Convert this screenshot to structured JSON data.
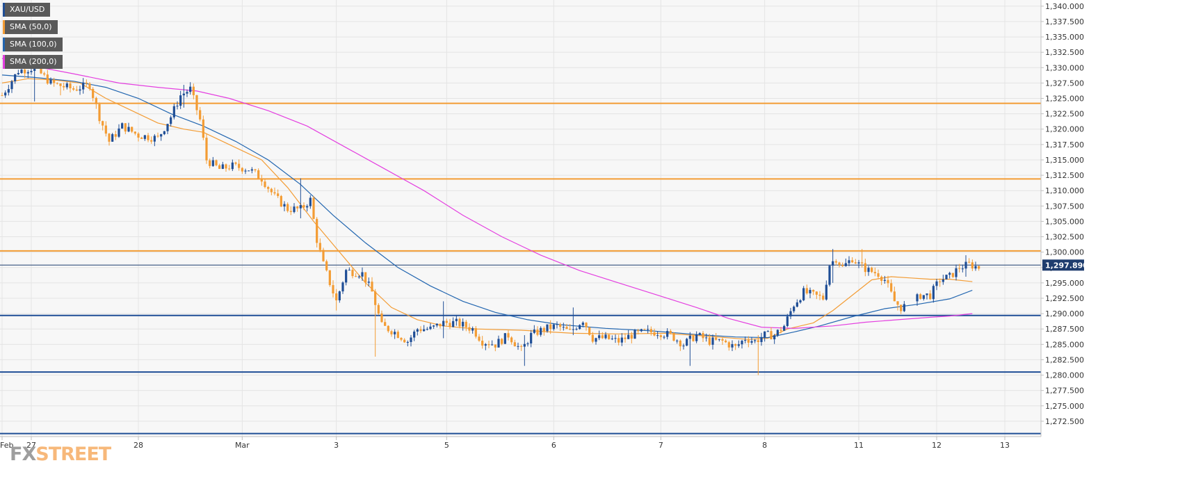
{
  "legend": [
    {
      "label": "XAU/USD",
      "color": "#1f4e96"
    },
    {
      "label": "SMA (50,0)",
      "color": "#f39c34"
    },
    {
      "label": "SMA (100,0)",
      "color": "#2266b0"
    },
    {
      "label": "SMA (200,0)",
      "color": "#e43fe0"
    }
  ],
  "watermark": {
    "part1": "FX",
    "part2": "STREET"
  },
  "current_price_label": "1,297.890",
  "colors": {
    "up": "#1f4e96",
    "down": "#f39c34",
    "sma50": "#f39c34",
    "sma100": "#2266b0",
    "sma200": "#e43fe0",
    "resistance": "#f39c34",
    "support": "#1f4e96",
    "current": "#1f3d6e",
    "grid": "#e4e4e4",
    "background": "#f7f7f7"
  },
  "chart_data": {
    "type": "candlestick",
    "title": "XAU/USD",
    "ylim": [
      1270,
      1341
    ],
    "xlim": [
      0,
      330
    ],
    "y_ticks": [
      1272.5,
      1275,
      1277.5,
      1280,
      1282.5,
      1285,
      1287.5,
      1290,
      1292.5,
      1295,
      1297.5,
      1300,
      1302.5,
      1305,
      1307.5,
      1310,
      1312.5,
      1315,
      1317.5,
      1320,
      1322.5,
      1325,
      1327.5,
      1330,
      1332.5,
      1335,
      1337.5,
      1340
    ],
    "y_tick_labels": [
      "1,272.500",
      "1,275.000",
      "1,277.500",
      "1,280.000",
      "1,282.500",
      "1,285.000",
      "1,287.500",
      "1,290.000",
      "1,292.500",
      "1,295.000",
      "1,297.500",
      "1,300.000",
      "1,302.500",
      "1,305.000",
      "1,307.500",
      "1,310.000",
      "1,312.500",
      "1,315.000",
      "1,317.500",
      "1,320.000",
      "1,322.500",
      "1,325.000",
      "1,327.500",
      "1,330.000",
      "1,332.500",
      "1,335.000",
      "1,337.500",
      "1,340.000"
    ],
    "x_ticks": [
      {
        "label": "Feb",
        "x": 0
      },
      {
        "label": "27",
        "x": 9
      },
      {
        "label": "28",
        "x": 42
      },
      {
        "label": "Mar",
        "x": 74
      },
      {
        "label": "3",
        "x": 103
      },
      {
        "label": "5",
        "x": 137
      },
      {
        "label": "6",
        "x": 170
      },
      {
        "label": "7",
        "x": 203
      },
      {
        "label": "8",
        "x": 235
      },
      {
        "label": "11",
        "x": 264
      },
      {
        "label": "12",
        "x": 288
      },
      {
        "label": "13",
        "x": 309
      }
    ],
    "horizontal_levels": [
      {
        "kind": "resistance",
        "value": 1324.2
      },
      {
        "kind": "resistance",
        "value": 1311.9
      },
      {
        "kind": "resistance",
        "value": 1300.2
      },
      {
        "kind": "support",
        "value": 1289.7
      },
      {
        "kind": "support",
        "value": 1280.5
      },
      {
        "kind": "support",
        "value": 1270.5
      },
      {
        "kind": "current",
        "value": 1297.89
      }
    ],
    "price_anchors": [
      [
        0,
        1325.5
      ],
      [
        5,
        1329.5
      ],
      [
        10,
        1330.0
      ],
      [
        15,
        1327.5
      ],
      [
        22,
        1326.5
      ],
      [
        27,
        1327.2
      ],
      [
        30,
        1322.0
      ],
      [
        33,
        1318.0
      ],
      [
        37,
        1320.5
      ],
      [
        42,
        1319.0
      ],
      [
        48,
        1318.5
      ],
      [
        52,
        1322.0
      ],
      [
        55,
        1325.5
      ],
      [
        58,
        1326.5
      ],
      [
        61,
        1321.5
      ],
      [
        63,
        1315.0
      ],
      [
        67,
        1313.5
      ],
      [
        71,
        1314.0
      ],
      [
        76,
        1313.5
      ],
      [
        80,
        1312.0
      ],
      [
        84,
        1309.0
      ],
      [
        88,
        1307.0
      ],
      [
        92,
        1307.0
      ],
      [
        95,
        1308.5
      ],
      [
        97,
        1302.0
      ],
      [
        99,
        1298.0
      ],
      [
        101,
        1295.0
      ],
      [
        103,
        1292.0
      ],
      [
        106,
        1297.0
      ],
      [
        111,
        1296.5
      ],
      [
        114,
        1293.5
      ],
      [
        117,
        1288.0
      ],
      [
        121,
        1287.0
      ],
      [
        125,
        1285.5
      ],
      [
        128,
        1287.5
      ],
      [
        132,
        1287.5
      ],
      [
        136,
        1288.5
      ],
      [
        140,
        1288.5
      ],
      [
        145,
        1287.5
      ],
      [
        148,
        1285.5
      ],
      [
        152,
        1285.0
      ],
      [
        156,
        1286.5
      ],
      [
        160,
        1284.0
      ],
      [
        163,
        1286.5
      ],
      [
        167,
        1287.5
      ],
      [
        171,
        1288.0
      ],
      [
        175,
        1287.0
      ],
      [
        179,
        1289.0
      ],
      [
        182,
        1286.0
      ],
      [
        186,
        1286.0
      ],
      [
        190,
        1285.5
      ],
      [
        194,
        1286.5
      ],
      [
        198,
        1287.0
      ],
      [
        202,
        1287.0
      ],
      [
        206,
        1286.5
      ],
      [
        210,
        1285.0
      ],
      [
        214,
        1286.5
      ],
      [
        218,
        1285.5
      ],
      [
        222,
        1285.5
      ],
      [
        226,
        1284.5
      ],
      [
        229,
        1286.0
      ],
      [
        232,
        1285.5
      ],
      [
        235,
        1286.5
      ],
      [
        238,
        1286.5
      ],
      [
        241,
        1288.0
      ],
      [
        244,
        1291.5
      ],
      [
        247,
        1293.5
      ],
      [
        250,
        1293.0
      ],
      [
        253,
        1292.5
      ],
      [
        255,
        1298.0
      ],
      [
        257,
        1299.0
      ],
      [
        259,
        1297.5
      ],
      [
        262,
        1299.0
      ],
      [
        264,
        1298.0
      ],
      [
        267,
        1297.0
      ],
      [
        270,
        1296.5
      ],
      [
        272,
        1295.5
      ],
      [
        275,
        1292.0
      ],
      [
        277,
        1291.0
      ],
      [
        280,
        1291.5
      ],
      [
        283,
        1293.0
      ],
      [
        286,
        1293.0
      ],
      [
        289,
        1295.5
      ],
      [
        292,
        1296.0
      ],
      [
        295,
        1297.5
      ],
      [
        298,
        1298.0
      ],
      [
        301,
        1297.5
      ]
    ],
    "special_bars": [
      {
        "i": 10,
        "high": 1330.5,
        "low": 1324.5
      },
      {
        "i": 18,
        "high": 1327.0,
        "low": 1325.5
      },
      {
        "i": 56,
        "high": 1327.2,
        "low": 1323.5
      },
      {
        "i": 92,
        "high": 1312.0,
        "low": 1305.5
      },
      {
        "i": 103,
        "high": 1294.0,
        "low": 1290.5
      },
      {
        "i": 115,
        "high": 1294.0,
        "low": 1283.0
      },
      {
        "i": 136,
        "high": 1292.0,
        "low": 1286.0
      },
      {
        "i": 161,
        "high": 1286.5,
        "low": 1281.5
      },
      {
        "i": 176,
        "high": 1291.0,
        "low": 1286.5
      },
      {
        "i": 212,
        "high": 1287.0,
        "low": 1281.5
      },
      {
        "i": 233,
        "high": 1286.5,
        "low": 1280.0
      },
      {
        "i": 256,
        "high": 1300.5,
        "low": 1295.0
      },
      {
        "i": 265,
        "high": 1300.5,
        "low": 1297.5
      },
      {
        "i": 276,
        "high": 1292.0,
        "low": 1290.5
      },
      {
        "i": 297,
        "high": 1299.5,
        "low": 1296.0
      }
    ],
    "sma50": [
      [
        0,
        1327.5
      ],
      [
        8,
        1328.2
      ],
      [
        16,
        1328.0
      ],
      [
        24,
        1327.5
      ],
      [
        32,
        1325.0
      ],
      [
        40,
        1323.0
      ],
      [
        48,
        1321.0
      ],
      [
        56,
        1320.0
      ],
      [
        62,
        1319.5
      ],
      [
        70,
        1317.5
      ],
      [
        80,
        1315.0
      ],
      [
        88,
        1310.5
      ],
      [
        96,
        1305.0
      ],
      [
        104,
        1300.0
      ],
      [
        112,
        1295.0
      ],
      [
        120,
        1291.0
      ],
      [
        128,
        1289.0
      ],
      [
        136,
        1288.0
      ],
      [
        146,
        1287.5
      ],
      [
        160,
        1287.3
      ],
      [
        176,
        1286.8
      ],
      [
        190,
        1286.7
      ],
      [
        204,
        1286.8
      ],
      [
        218,
        1286.3
      ],
      [
        230,
        1285.8
      ],
      [
        236,
        1286.0
      ],
      [
        242,
        1287.5
      ],
      [
        250,
        1288.5
      ],
      [
        256,
        1290.5
      ],
      [
        262,
        1293.0
      ],
      [
        268,
        1295.5
      ],
      [
        274,
        1296.0
      ],
      [
        280,
        1295.8
      ],
      [
        286,
        1295.6
      ],
      [
        292,
        1295.6
      ],
      [
        299,
        1295.2
      ]
    ],
    "sma100": [
      [
        0,
        1328.8
      ],
      [
        10,
        1328.4
      ],
      [
        22,
        1327.8
      ],
      [
        32,
        1326.8
      ],
      [
        42,
        1325.0
      ],
      [
        52,
        1322.5
      ],
      [
        62,
        1320.5
      ],
      [
        72,
        1318.0
      ],
      [
        82,
        1315.0
      ],
      [
        92,
        1311.0
      ],
      [
        102,
        1306.0
      ],
      [
        112,
        1301.5
      ],
      [
        122,
        1297.5
      ],
      [
        132,
        1294.5
      ],
      [
        142,
        1292.0
      ],
      [
        152,
        1290.2
      ],
      [
        162,
        1289.0
      ],
      [
        172,
        1288.2
      ],
      [
        186,
        1287.6
      ],
      [
        200,
        1287.2
      ],
      [
        214,
        1286.6
      ],
      [
        226,
        1286.2
      ],
      [
        236,
        1286.1
      ],
      [
        244,
        1287.0
      ],
      [
        252,
        1288.0
      ],
      [
        262,
        1289.5
      ],
      [
        272,
        1290.8
      ],
      [
        282,
        1291.5
      ],
      [
        292,
        1292.4
      ],
      [
        299,
        1293.8
      ]
    ],
    "sma200": [
      [
        0,
        1331.5
      ],
      [
        10,
        1330.2
      ],
      [
        22,
        1329.0
      ],
      [
        36,
        1327.5
      ],
      [
        48,
        1326.8
      ],
      [
        60,
        1326.2
      ],
      [
        70,
        1325.0
      ],
      [
        82,
        1323.0
      ],
      [
        94,
        1320.5
      ],
      [
        106,
        1317.0
      ],
      [
        118,
        1313.5
      ],
      [
        130,
        1310.0
      ],
      [
        142,
        1306.0
      ],
      [
        154,
        1302.5
      ],
      [
        166,
        1299.5
      ],
      [
        178,
        1297.0
      ],
      [
        190,
        1295.0
      ],
      [
        202,
        1293.0
      ],
      [
        214,
        1291.0
      ],
      [
        224,
        1289.2
      ],
      [
        234,
        1287.8
      ],
      [
        244,
        1287.6
      ],
      [
        256,
        1288.0
      ],
      [
        266,
        1288.6
      ],
      [
        276,
        1289.0
      ],
      [
        286,
        1289.4
      ],
      [
        292,
        1289.6
      ],
      [
        299,
        1290.0
      ]
    ]
  }
}
